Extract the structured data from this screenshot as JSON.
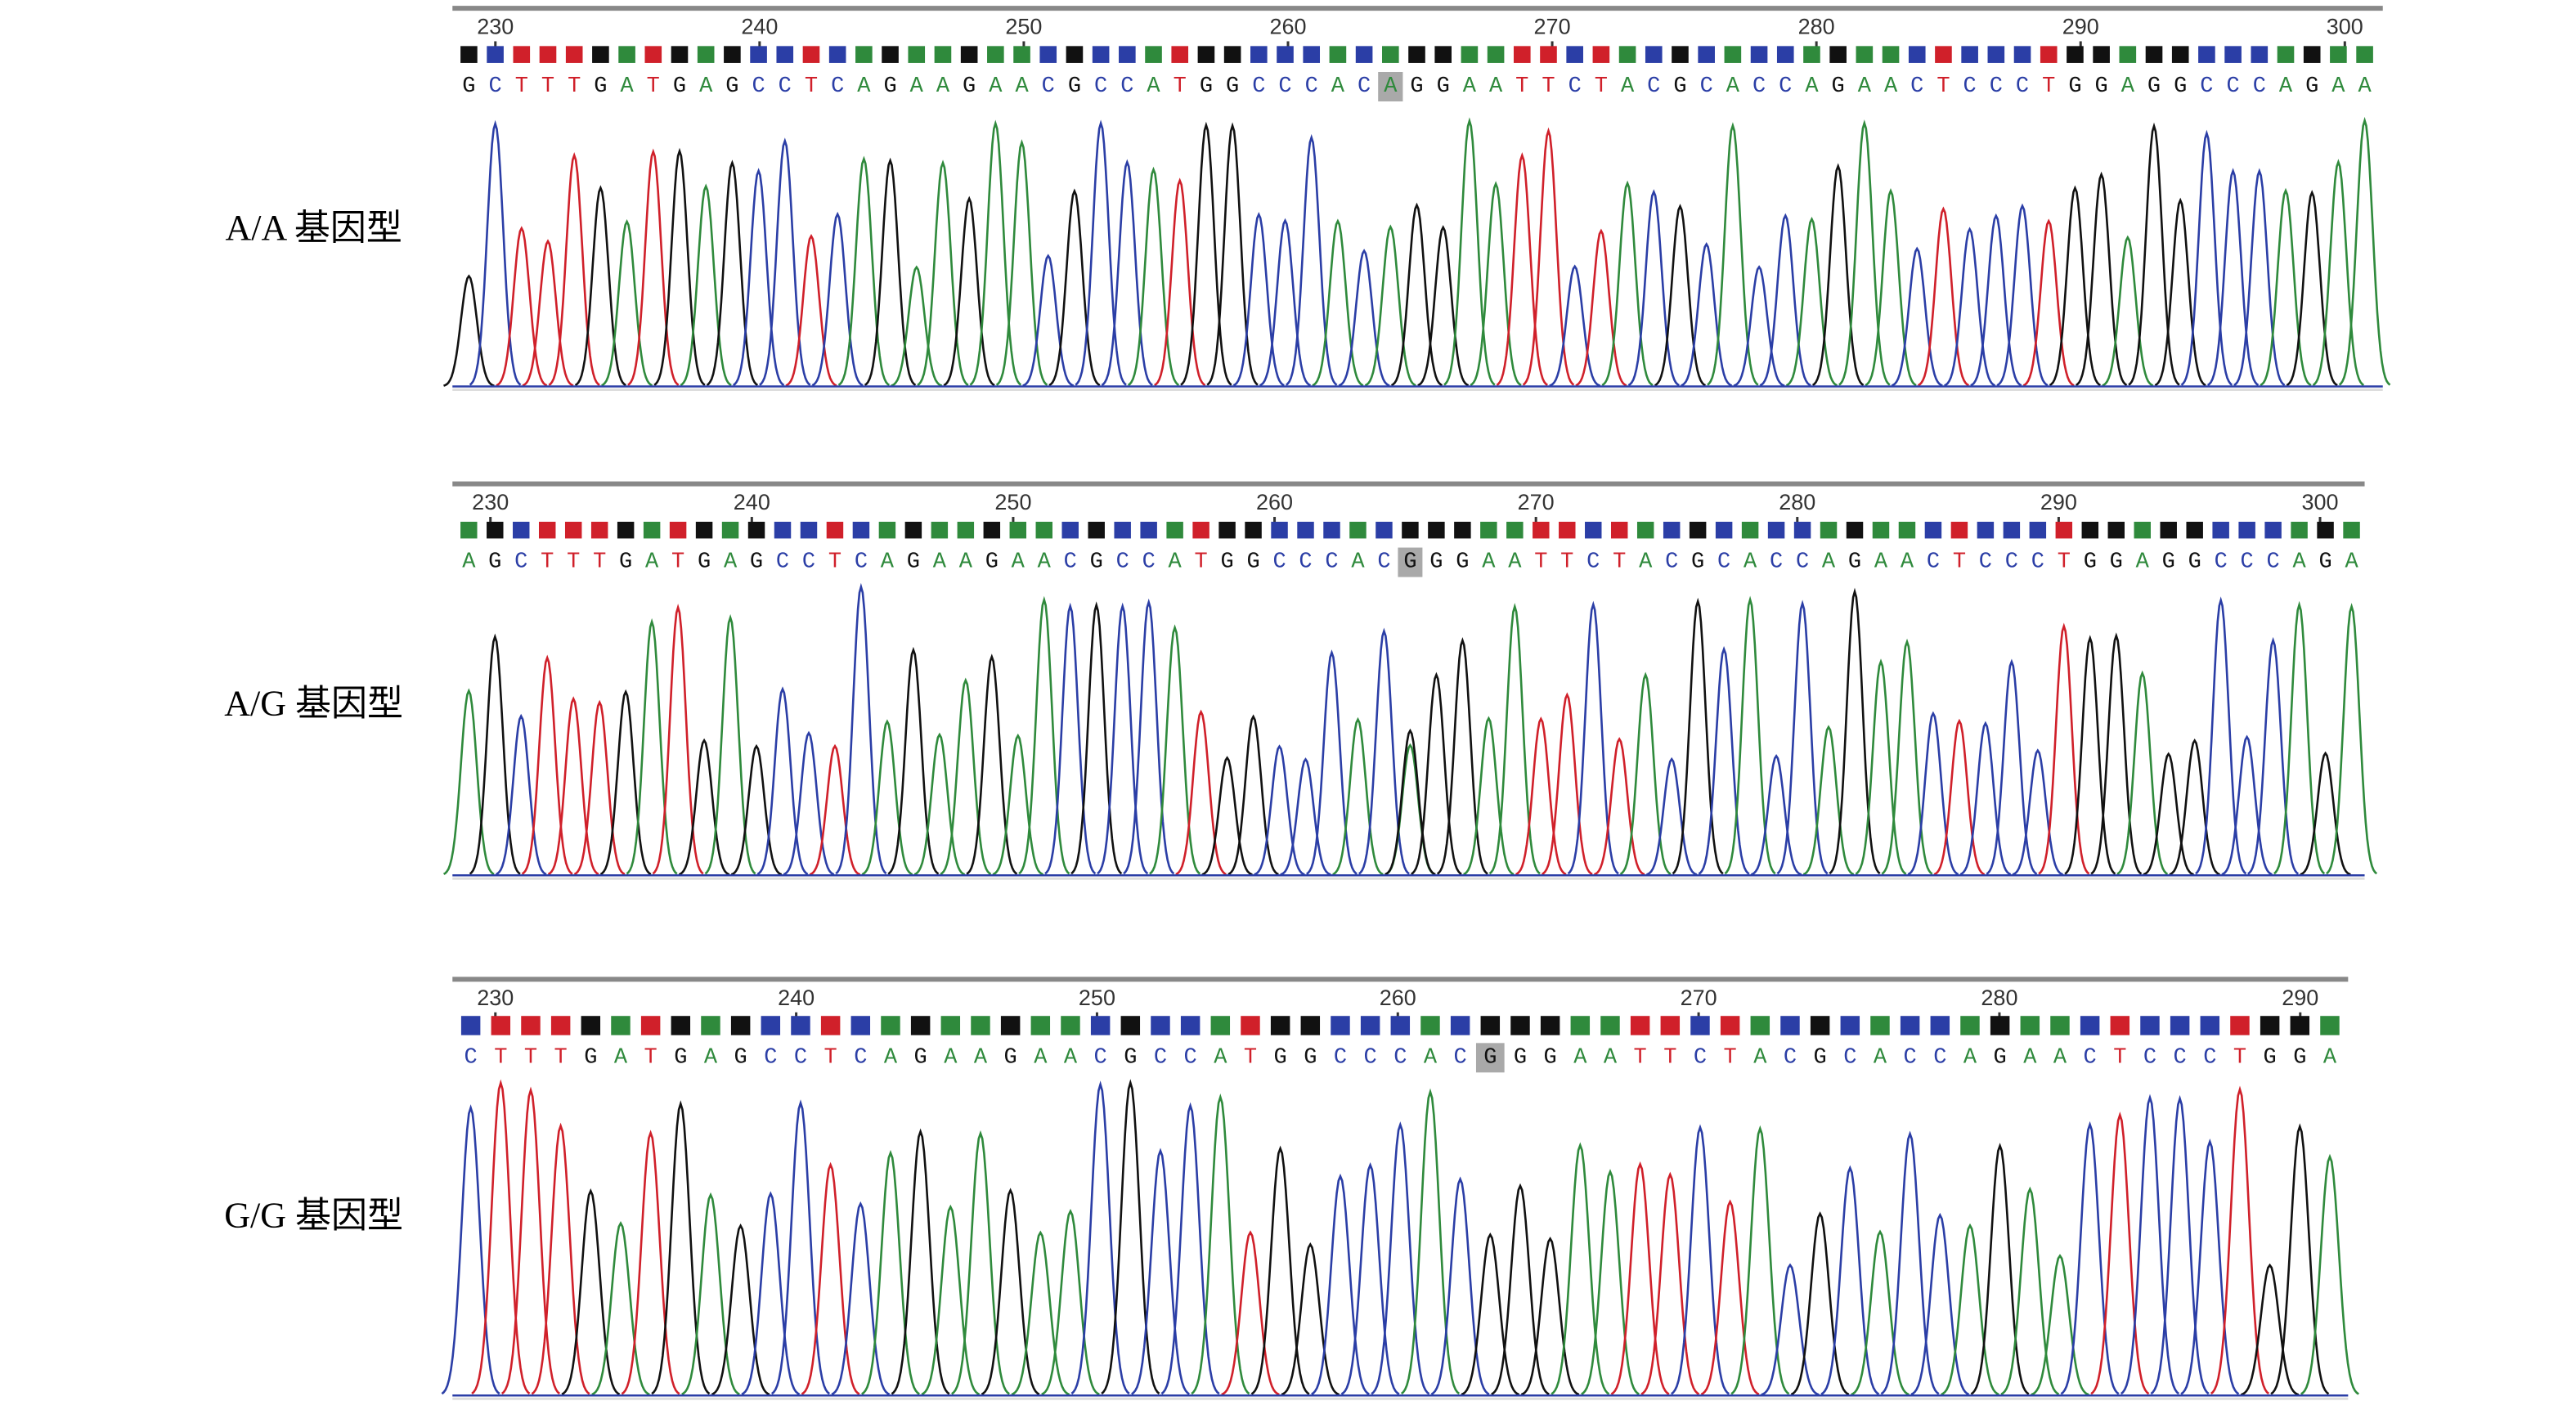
{
  "panels": [
    {
      "label": "A/A 基因型",
      "ticks": [
        230,
        240,
        250,
        260,
        270,
        280,
        290,
        300
      ],
      "sequence": [
        "GCTTTGATGAGCCTCAGAAGAACGCCATGGCCCAC",
        "A",
        "GGAATTCTACGCACCAGAACTCCCTGGAGGCCCAGAA"
      ]
    },
    {
      "label": "A/G 基因型",
      "ticks": [
        230,
        240,
        250,
        260,
        270,
        280,
        290,
        300
      ],
      "sequence": [
        "AGCTTTGATGAGCCTCAGAAGAACGCCATGGCCCAC",
        "G",
        "GGAATTCTACGCACCAGAACTCCCTGGAGGCCCAGA"
      ]
    },
    {
      "label": "G/G 基因型",
      "ticks": [
        230,
        240,
        250,
        260,
        270,
        280,
        290
      ],
      "sequence": [
        "CTTTGATGAGCCTCAGAAGAACGCCATGGCCCAC",
        "G",
        "GGAATTCTACGCACCAGAACTCCCTGGA"
      ]
    }
  ]
}
